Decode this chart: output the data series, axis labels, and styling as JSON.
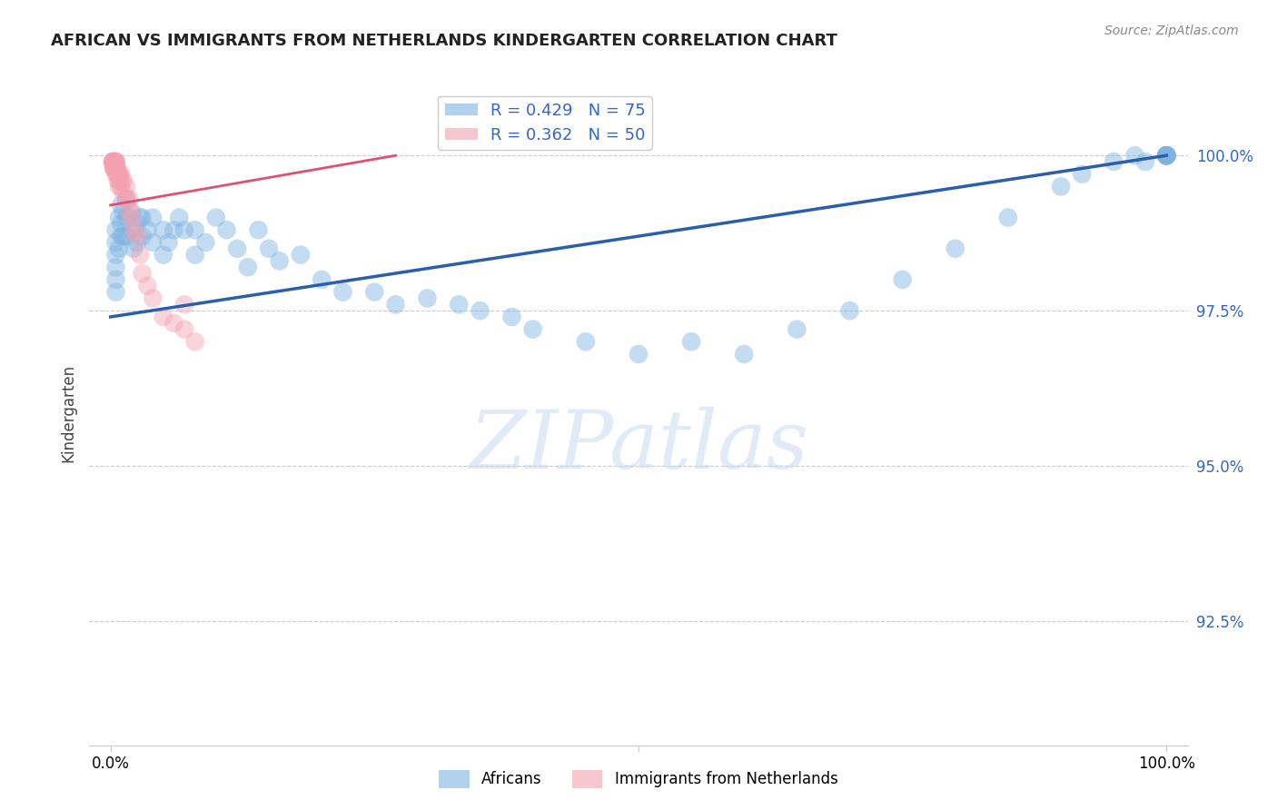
{
  "title": "AFRICAN VS IMMIGRANTS FROM NETHERLANDS KINDERGARTEN CORRELATION CHART",
  "source": "Source: ZipAtlas.com",
  "ylabel": "Kindergarten",
  "watermark": "ZIPatlas",
  "legend_blue_label": "Africans",
  "legend_pink_label": "Immigrants from Netherlands",
  "blue_R": 0.429,
  "blue_N": 75,
  "pink_R": 0.362,
  "pink_N": 50,
  "blue_color": "#7EB3E0",
  "pink_color": "#F4A0B0",
  "blue_line_color": "#2B5FAA",
  "pink_line_color": "#E05070",
  "xlim": [
    -0.02,
    1.02
  ],
  "ylim": [
    0.905,
    1.012
  ],
  "yticks": [
    0.925,
    0.95,
    0.975,
    1.0
  ],
  "ytick_labels": [
    "92.5%",
    "95.0%",
    "97.5%",
    "100.0%"
  ],
  "xticks": [
    0.0,
    0.5,
    1.0
  ],
  "xtick_labels": [
    "0.0%",
    "",
    "100.0%"
  ],
  "blue_scatter_x": [
    0.005,
    0.005,
    0.005,
    0.005,
    0.005,
    0.005,
    0.008,
    0.008,
    0.01,
    0.01,
    0.01,
    0.012,
    0.012,
    0.015,
    0.015,
    0.015,
    0.02,
    0.02,
    0.022,
    0.025,
    0.025,
    0.028,
    0.03,
    0.03,
    0.035,
    0.04,
    0.04,
    0.05,
    0.05,
    0.055,
    0.06,
    0.065,
    0.07,
    0.08,
    0.08,
    0.09,
    0.1,
    0.11,
    0.12,
    0.13,
    0.14,
    0.15,
    0.16,
    0.18,
    0.2,
    0.22,
    0.25,
    0.27,
    0.3,
    0.33,
    0.35,
    0.38,
    0.4,
    0.45,
    0.5,
    0.55,
    0.6,
    0.65,
    0.7,
    0.75,
    0.8,
    0.85,
    0.9,
    0.92,
    0.95,
    0.97,
    0.98,
    1.0,
    1.0,
    1.0,
    1.0,
    1.0,
    1.0,
    1.0,
    1.0
  ],
  "blue_scatter_y": [
    0.988,
    0.986,
    0.984,
    0.982,
    0.98,
    0.978,
    0.99,
    0.985,
    0.992,
    0.989,
    0.987,
    0.991,
    0.987,
    0.993,
    0.99,
    0.987,
    0.991,
    0.988,
    0.985,
    0.989,
    0.986,
    0.99,
    0.99,
    0.987,
    0.988,
    0.99,
    0.986,
    0.988,
    0.984,
    0.986,
    0.988,
    0.99,
    0.988,
    0.988,
    0.984,
    0.986,
    0.99,
    0.988,
    0.985,
    0.982,
    0.988,
    0.985,
    0.983,
    0.984,
    0.98,
    0.978,
    0.978,
    0.976,
    0.977,
    0.976,
    0.975,
    0.974,
    0.972,
    0.97,
    0.968,
    0.97,
    0.968,
    0.972,
    0.975,
    0.98,
    0.985,
    0.99,
    0.995,
    0.997,
    0.999,
    1.0,
    0.999,
    1.0,
    1.0,
    1.0,
    1.0,
    1.0,
    1.0,
    1.0,
    1.0
  ],
  "pink_scatter_x": [
    0.002,
    0.002,
    0.002,
    0.003,
    0.003,
    0.003,
    0.003,
    0.003,
    0.003,
    0.003,
    0.004,
    0.004,
    0.004,
    0.004,
    0.005,
    0.005,
    0.005,
    0.005,
    0.005,
    0.005,
    0.006,
    0.006,
    0.006,
    0.007,
    0.007,
    0.008,
    0.008,
    0.008,
    0.008,
    0.01,
    0.01,
    0.01,
    0.012,
    0.012,
    0.015,
    0.015,
    0.018,
    0.018,
    0.02,
    0.022,
    0.025,
    0.028,
    0.03,
    0.035,
    0.04,
    0.05,
    0.06,
    0.07,
    0.07,
    0.08
  ],
  "pink_scatter_y": [
    0.999,
    0.999,
    0.999,
    0.999,
    0.999,
    0.999,
    0.999,
    0.998,
    0.998,
    0.998,
    0.999,
    0.999,
    0.998,
    0.998,
    0.999,
    0.999,
    0.999,
    0.998,
    0.998,
    0.997,
    0.998,
    0.998,
    0.997,
    0.997,
    0.996,
    0.997,
    0.997,
    0.996,
    0.995,
    0.997,
    0.996,
    0.995,
    0.996,
    0.994,
    0.995,
    0.993,
    0.993,
    0.991,
    0.99,
    0.988,
    0.987,
    0.984,
    0.981,
    0.979,
    0.977,
    0.974,
    0.973,
    0.976,
    0.972,
    0.97
  ],
  "blue_line_x": [
    0.0,
    1.0
  ],
  "blue_line_y": [
    0.974,
    1.0
  ],
  "pink_line_x": [
    0.0,
    0.27
  ],
  "pink_line_y": [
    0.992,
    1.0
  ]
}
